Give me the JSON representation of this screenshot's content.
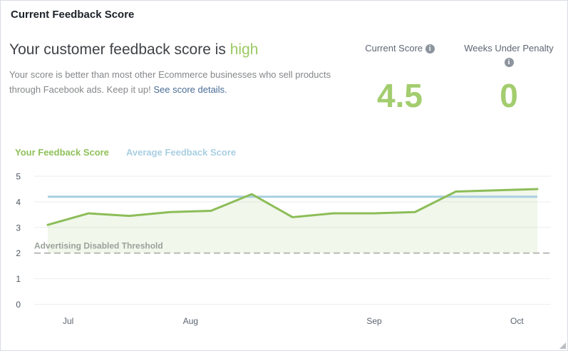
{
  "page": {
    "title": "Current Feedback Score"
  },
  "summary": {
    "heading_prefix": "Your customer feedback score is ",
    "heading_highlight": "high",
    "body_line1": "Your score is better than most other Ecommerce businesses who sell products",
    "body_line2": "through Facebook ads. Keep it up! ",
    "link_label": "See score details."
  },
  "stats": {
    "current_score": {
      "label": "Current Score",
      "value": "4.5"
    },
    "weeks_under_penalty": {
      "label": "Weeks Under Penalty",
      "value": "0"
    },
    "info_icon_glyph": "i"
  },
  "legend": {
    "your_score_label": "Your Feedback Score",
    "average_score_label": "Average Feedback Score"
  },
  "chart_data": {
    "type": "line",
    "x_unit": "week",
    "x": [
      1,
      2,
      3,
      4,
      5,
      6,
      7,
      8,
      9,
      10,
      11,
      12,
      13
    ],
    "series": [
      {
        "name": "Your Feedback Score",
        "color": "#8cbd58",
        "values": [
          3.1,
          3.55,
          3.45,
          3.6,
          3.65,
          4.3,
          3.4,
          3.55,
          3.55,
          3.6,
          4.4,
          4.45,
          4.5
        ]
      },
      {
        "name": "Average Feedback Score",
        "color": "#a9cfe2",
        "constant_value": 4.2
      }
    ],
    "threshold": {
      "value": 2,
      "label": "Advertising Disabled Threshold"
    },
    "ylim": [
      0,
      5
    ],
    "yticks": [
      0,
      1,
      2,
      3,
      4,
      5
    ],
    "x_tick_labels": [
      "Jul",
      "Aug",
      "Sep",
      "Oct"
    ],
    "x_tick_positions_index": [
      0.5,
      3.5,
      8,
      11.5
    ],
    "grid": true,
    "legend_position": "top-left",
    "area_fill": {
      "series": "Your Feedback Score",
      "fill_to": 2,
      "color": "#8cbd58",
      "opacity": 0.12
    }
  },
  "colors": {
    "accent_green_text": "#9cc863",
    "stat_value_green": "#a3cd6e",
    "legend_green": "#8fc05a",
    "legend_blue": "#a9cfe2",
    "line_green": "#8cbd58",
    "line_blue": "#a9cfe2",
    "threshold_dash": "#b7bbb7",
    "gridline": "#ebeef0",
    "link_blue": "#4a6d96"
  }
}
